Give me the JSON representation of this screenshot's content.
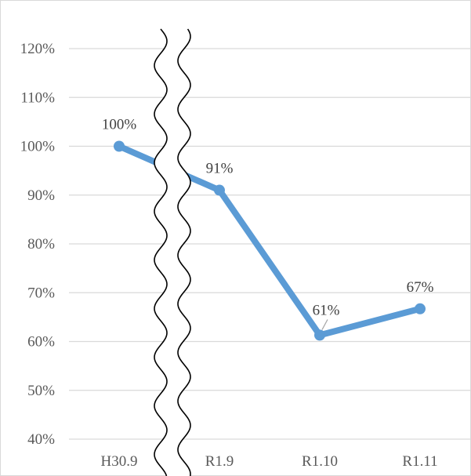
{
  "chart_data": {
    "type": "line",
    "title": "",
    "xlabel": "",
    "ylabel": "",
    "categories": [
      "H30.9",
      "R1.9",
      "R1.10",
      "R1.11"
    ],
    "series": [
      {
        "values": [
          100,
          91,
          61.3,
          66.7
        ],
        "labels": [
          "100%",
          "91%",
          "61%",
          "67%"
        ],
        "color": "#5B9BD5"
      }
    ],
    "ylim": [
      40,
      120
    ],
    "yticks": [
      40,
      50,
      60,
      70,
      80,
      90,
      100,
      110,
      120
    ],
    "ytick_labels": [
      "40%",
      "50%",
      "60%",
      "70%",
      "80%",
      "90%",
      "100%",
      "110%",
      "120%"
    ],
    "grid": true,
    "legend": "none",
    "axis_break": "wavy break between H30.9 and R1.9",
    "gridline_color": "#d9d9d9",
    "axis_text_color": "#595959"
  }
}
